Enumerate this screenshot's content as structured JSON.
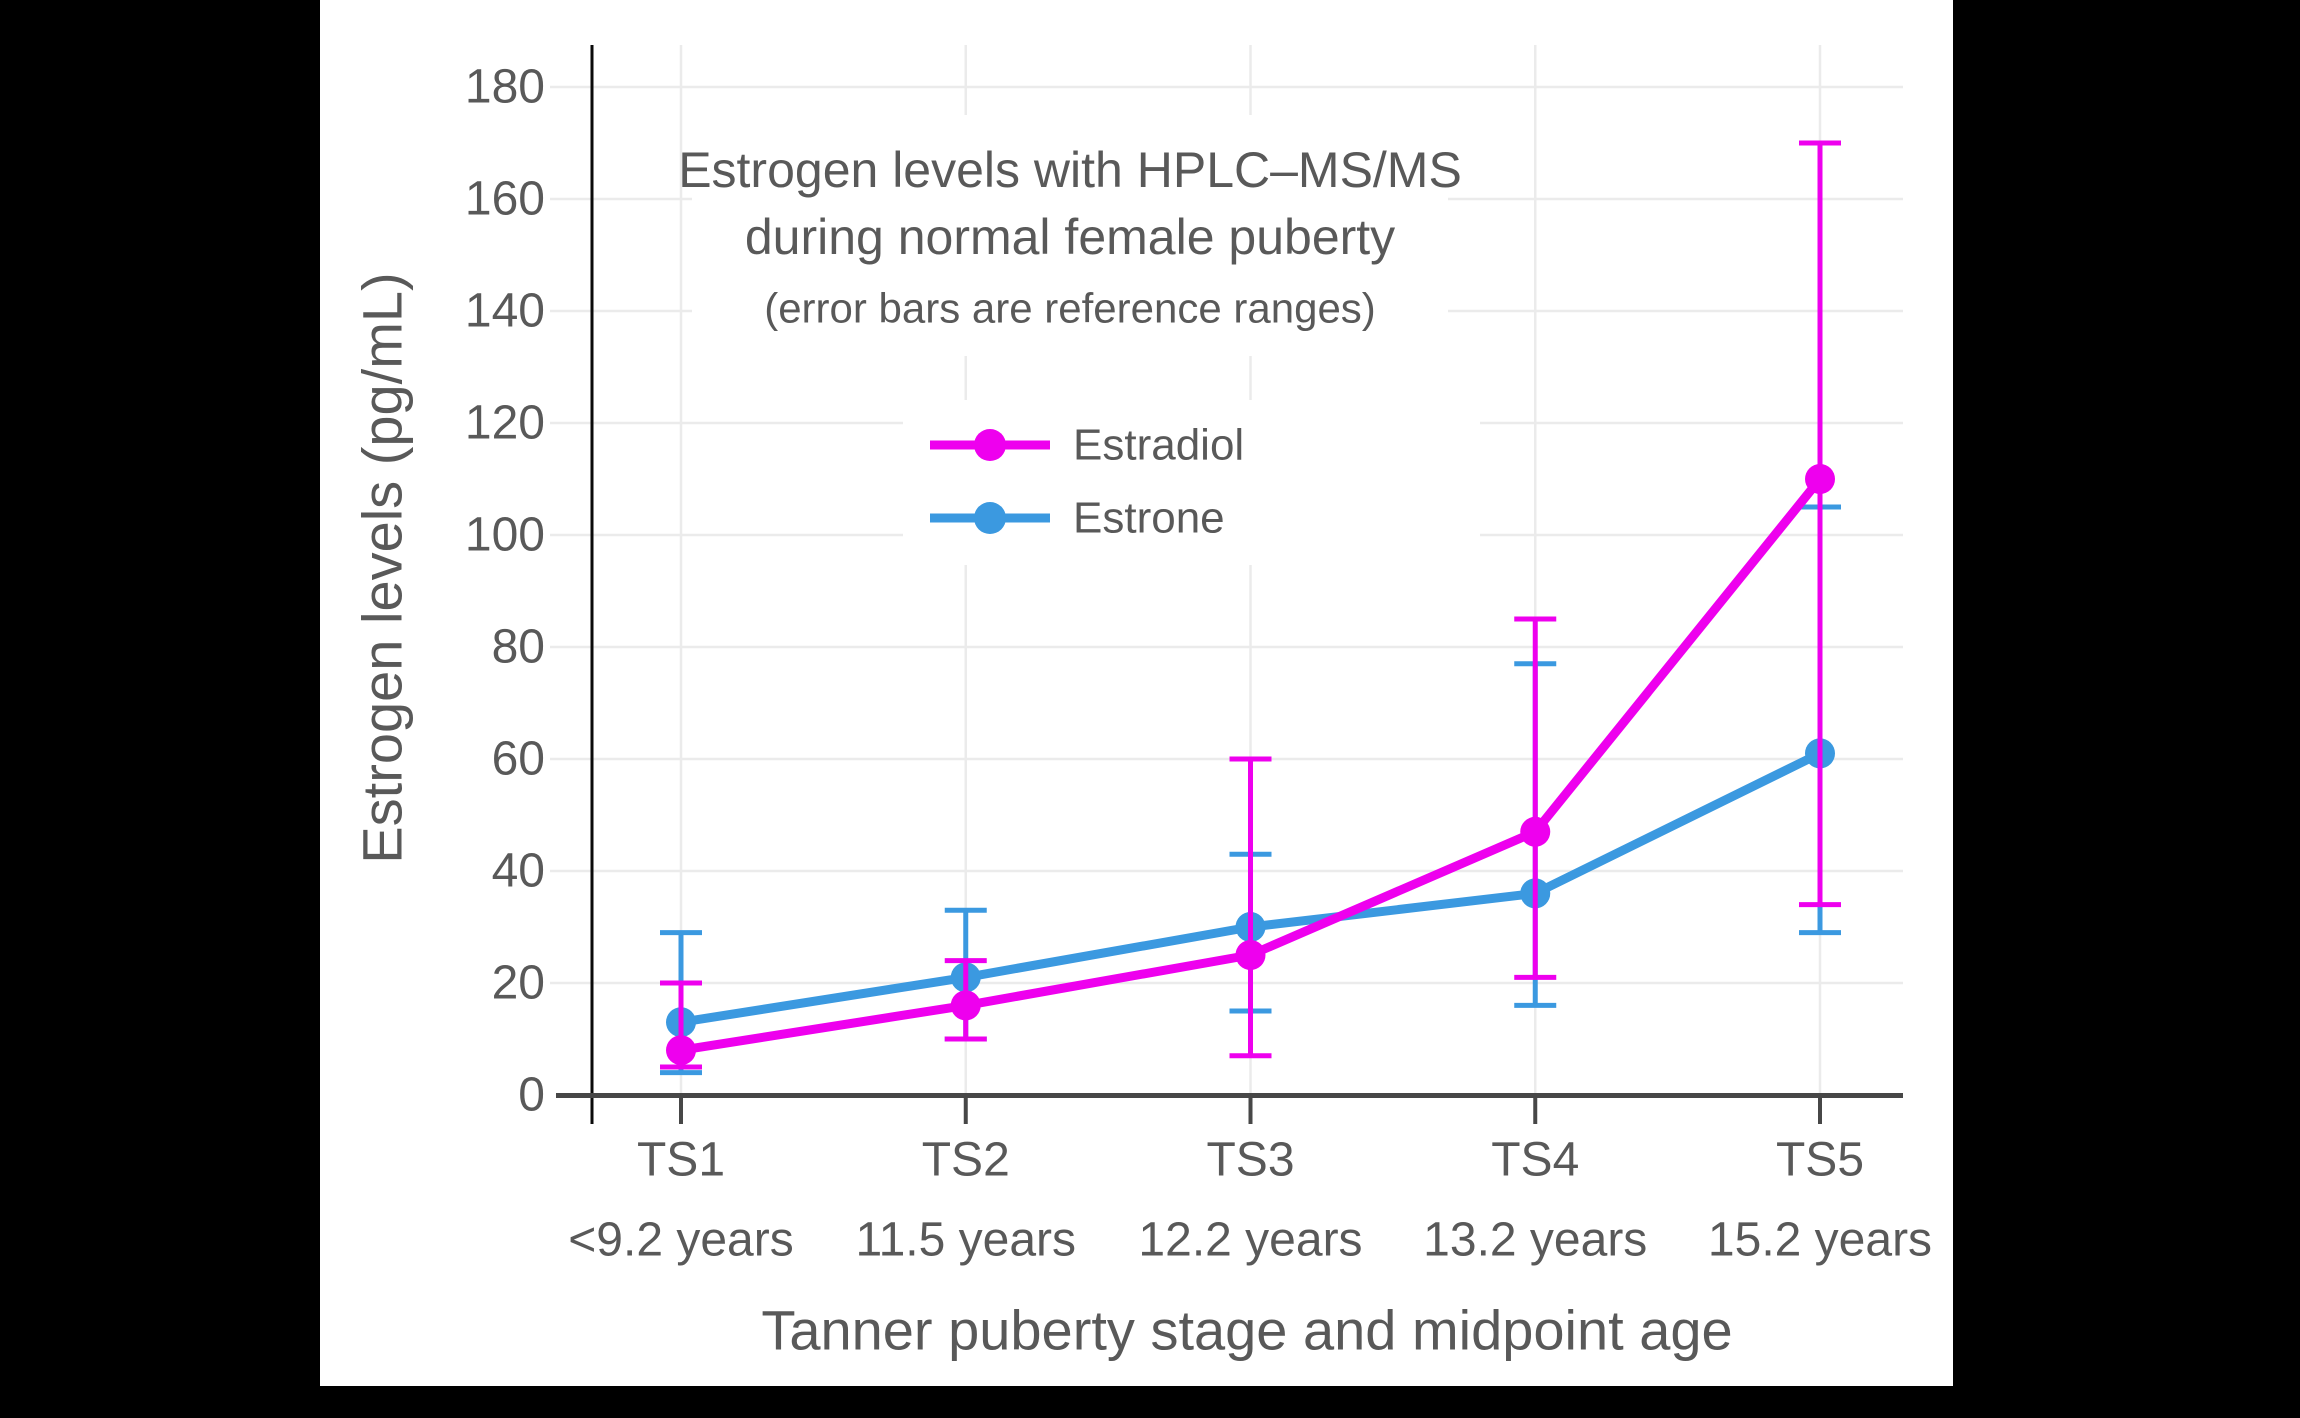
{
  "chart_data": {
    "type": "line",
    "title": "Estrogen levels with HPLC–MS/MS during normal female puberty",
    "title_line1": "Estrogen levels with HPLC–MS/MS",
    "title_line2": "during normal female puberty",
    "subtitle": "(error bars are reference ranges)",
    "xlabel": "Tanner puberty stage and midpoint age",
    "ylabel": "Estrogen levels (pg/mL)",
    "categories": [
      "TS1",
      "TS2",
      "TS3",
      "TS4",
      "TS5"
    ],
    "category_sublabels": [
      "<9.2 years",
      "11.5 years",
      "12.2 years",
      "13.2 years",
      "15.2 years"
    ],
    "ylim": [
      0,
      180
    ],
    "yticks": [
      0,
      20,
      40,
      60,
      80,
      100,
      120,
      140,
      160,
      180
    ],
    "grid": true,
    "legend_position": "upper-center-inside",
    "series": [
      {
        "name": "Estradiol",
        "color": "#EE00EE",
        "values": [
          8,
          16,
          25,
          47,
          110
        ],
        "error_low": [
          5,
          10,
          7,
          21,
          34
        ],
        "error_high": [
          20,
          24,
          60,
          85,
          170
        ]
      },
      {
        "name": "Estrone",
        "color": "#3B99E0",
        "values": [
          13,
          21,
          30,
          36,
          61
        ],
        "error_low": [
          4,
          10,
          15,
          16,
          29
        ],
        "error_high": [
          29,
          33,
          43,
          77,
          105
        ]
      }
    ]
  },
  "colors": {
    "background": "#000000",
    "card": "#FFFFFF",
    "grid": "#EBEBEB",
    "axis": "#474747",
    "spine": "#0A0A0A",
    "text": "#595959"
  }
}
